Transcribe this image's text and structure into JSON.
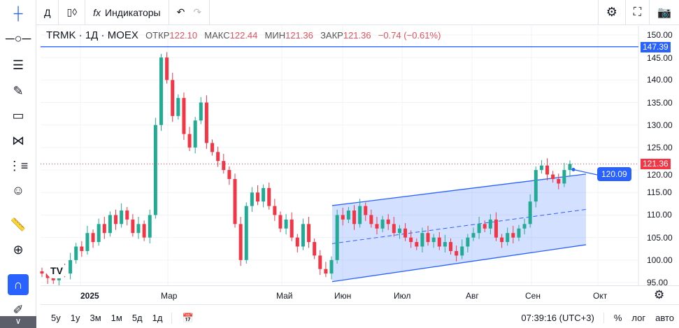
{
  "toolbar": {
    "interval": "Д",
    "indicators": "Индикаторы",
    "undo": "↶",
    "redo": "↷"
  },
  "legend": {
    "symbol": "TRMK",
    "interval": "1Д",
    "exchange": "MOEX",
    "open_label": "ОТКР",
    "open": "122.10",
    "high_label": "МАКС",
    "high": "122.44",
    "low_label": "МИН",
    "low": "121.36",
    "close_label": "ЗАКР",
    "close": "121.36",
    "change": "−0.74 (−0.61%)"
  },
  "price_axis": {
    "ticks": [
      "150.00",
      "145.00",
      "140.00",
      "135.00",
      "130.00",
      "125.00",
      "120.00",
      "115.00",
      "110.00",
      "105.00",
      "100.00",
      "95.00"
    ],
    "horizontal_line_label": "147.39",
    "last_price_label": "121.36",
    "drawn_label": "120.09"
  },
  "time_axis": {
    "ticks": [
      "2025",
      "Мар",
      "Май",
      "Июн",
      "Июл",
      "Авг",
      "Сен",
      "Окт"
    ]
  },
  "bottom": {
    "ranges": [
      "5y",
      "1y",
      "3м",
      "1м",
      "5д",
      "1д"
    ],
    "clock": "07:39:16 (UTC+3)",
    "percent": "%",
    "log": "лог",
    "auto": "авто"
  },
  "colors": {
    "up": "#22ab94",
    "down": "#f23645",
    "channel": "#2962ff",
    "hline": "#2962ff"
  },
  "chart_data": {
    "type": "candlestick",
    "ylim": [
      95,
      150
    ],
    "horizontal_line": 147.39,
    "last_price": 121.36,
    "annotation_price": 120.09,
    "closes": [
      97,
      96,
      95.5,
      98,
      97,
      100,
      103,
      102,
      106,
      104,
      108,
      106,
      110,
      108,
      111,
      109,
      106,
      108,
      105,
      110,
      130,
      145,
      140,
      132,
      136,
      128,
      125,
      131,
      135,
      126,
      124,
      122,
      120,
      118,
      108,
      100,
      112,
      115,
      113,
      116,
      112,
      110,
      107,
      109,
      105,
      103,
      108,
      104,
      101,
      98,
      97,
      100,
      110,
      109,
      111,
      108,
      112,
      110,
      108,
      107,
      109,
      108,
      106,
      107,
      105,
      104,
      103,
      106,
      104,
      105,
      103,
      104,
      102,
      101,
      103,
      105,
      106,
      108,
      107,
      109,
      105,
      104,
      106,
      105,
      107,
      108,
      113,
      120,
      121,
      119,
      118,
      117,
      120,
      121.36
    ],
    "channel": {
      "start": "Июн",
      "end": "Окт",
      "upper": [
        112.1,
        119.1
      ],
      "lower": [
        95.2,
        103.4
      ]
    }
  }
}
